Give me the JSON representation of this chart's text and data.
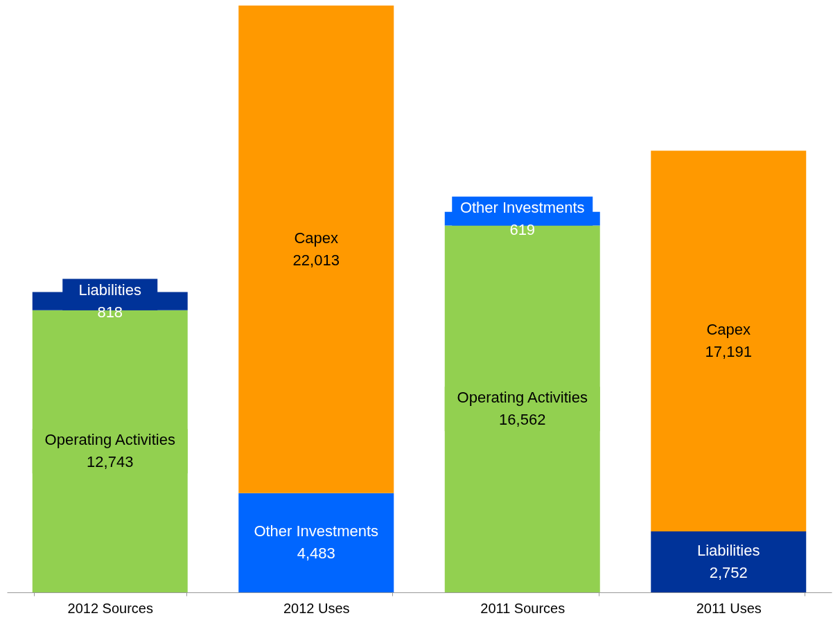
{
  "chart_data": {
    "type": "bar",
    "stacked": true,
    "grid": false,
    "categories": [
      "2012 Sources",
      "2012 Uses",
      "2011 Sources",
      "2011 Uses"
    ],
    "series": [
      {
        "name": "Operating Activities",
        "color": "#92d050",
        "values": [
          12743,
          null,
          16562,
          null
        ],
        "value_labels": [
          "12,743",
          null,
          "16,562",
          null
        ]
      },
      {
        "name": "Liabilities",
        "color": "#003399",
        "values": [
          818,
          null,
          null,
          2752
        ],
        "value_labels": [
          "818",
          null,
          null,
          "2,752"
        ]
      },
      {
        "name": "Other Investments",
        "color": "#0066ff",
        "values": [
          null,
          4483,
          619,
          null
        ],
        "value_labels": [
          null,
          "4,483",
          "619",
          null
        ]
      },
      {
        "name": "Capex",
        "color": "#ff9900",
        "values": [
          null,
          22013,
          null,
          17191
        ],
        "value_labels": [
          null,
          "22,013",
          null,
          "17,191"
        ]
      }
    ]
  }
}
